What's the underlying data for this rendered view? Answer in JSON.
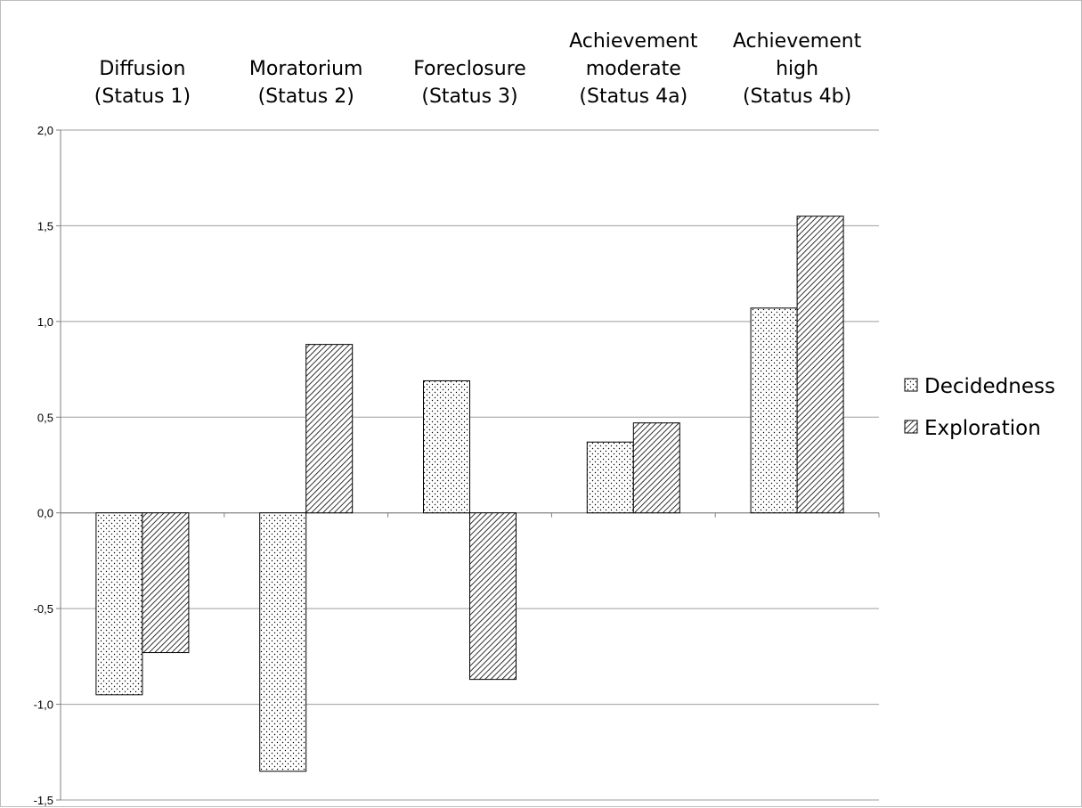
{
  "chart_data": {
    "type": "bar",
    "title": "",
    "xlabel": "",
    "ylabel": "",
    "categories": [
      [
        "Diffusion",
        "(Status 1)"
      ],
      [
        "Moratorium",
        "(Status 2)"
      ],
      [
        "Foreclosure",
        "(Status 3)"
      ],
      [
        "Achievement",
        "moderate",
        "(Status 4a)"
      ],
      [
        "Achievement",
        "high",
        "(Status 4b)"
      ]
    ],
    "series": [
      {
        "name": "Decidedness",
        "pattern": "dots",
        "values": [
          -0.95,
          -1.35,
          0.69,
          0.37,
          1.07
        ]
      },
      {
        "name": "Exploration",
        "pattern": "diagonal-hatch",
        "values": [
          -0.73,
          0.88,
          -0.87,
          0.47,
          1.55
        ]
      }
    ],
    "ylim": [
      -1.5,
      2.0
    ],
    "yticks": [
      "-1,5",
      "-1,0",
      "-0,5",
      "0,0",
      "0,5",
      "1,0",
      "1,5",
      "2,0"
    ],
    "ytick_values": [
      -1.5,
      -1.0,
      -0.5,
      0.0,
      0.5,
      1.0,
      1.5,
      2.0
    ],
    "grid": true,
    "legend_position": "right",
    "colors": {
      "bar_fill": "#ffffff",
      "bar_stroke": "#000000",
      "pattern": "#000000",
      "grid": "#9e9e9e",
      "axis": "#7f7f7f"
    }
  }
}
